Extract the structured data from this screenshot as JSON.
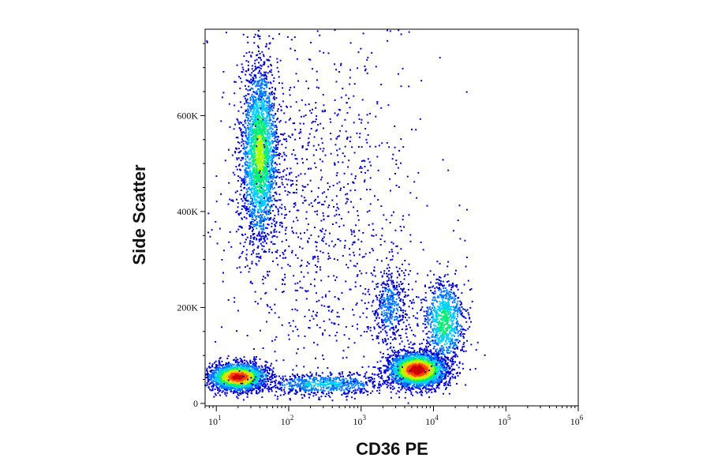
{
  "chart_data": {
    "type": "scatter",
    "title": "",
    "xlabel": "CD36 PE",
    "ylabel": "Side Scatter",
    "x_scale": "log",
    "xlim": [
      7,
      1000000
    ],
    "ylim": [
      -5000,
      780000
    ],
    "x_ticks": [
      {
        "value": 10,
        "base": "10",
        "exp": "1"
      },
      {
        "value": 100,
        "base": "10",
        "exp": "2"
      },
      {
        "value": 1000,
        "base": "10",
        "exp": "3"
      },
      {
        "value": 10000,
        "base": "10",
        "exp": "4"
      },
      {
        "value": 100000,
        "base": "10",
        "exp": "5"
      },
      {
        "value": 1000000,
        "base": "10",
        "exp": "6"
      }
    ],
    "y_ticks": [
      {
        "value": 0,
        "label": "0"
      },
      {
        "value": 200000,
        "label": "200K"
      },
      {
        "value": 400000,
        "label": "400K"
      },
      {
        "value": 600000,
        "label": "600K"
      }
    ],
    "grid": false,
    "legend": "none",
    "density_colormap": [
      "#0000cc",
      "#0077ff",
      "#00ccff",
      "#00ee77",
      "#aaff00",
      "#ffcc00",
      "#ff4400",
      "#cc0000"
    ],
    "populations": [
      {
        "id": "granulocytes",
        "x_center": 40,
        "y_center": 520000,
        "x_spread_log": 0.13,
        "y_spread": 95000,
        "events": 2600,
        "peak_density": 0.55
      },
      {
        "id": "lymphocytes",
        "x_center": 20,
        "y_center": 55000,
        "x_spread_log": 0.2,
        "y_spread": 14000,
        "events": 2200,
        "peak_density": 0.95
      },
      {
        "id": "monocytes",
        "x_center": 6000,
        "y_center": 70000,
        "x_spread_log": 0.2,
        "y_spread": 18000,
        "events": 2800,
        "peak_density": 1.0
      },
      {
        "id": "cd36-high-tail",
        "x_center": 14000,
        "y_center": 170000,
        "x_spread_log": 0.15,
        "y_spread": 45000,
        "events": 900,
        "peak_density": 0.45
      },
      {
        "id": "mid-population",
        "x_center": 2500,
        "y_center": 200000,
        "x_spread_log": 0.13,
        "y_spread": 45000,
        "events": 450,
        "peak_density": 0.2
      },
      {
        "id": "low-bridge",
        "x_center": 300,
        "y_center": 40000,
        "x_spread_log": 0.45,
        "y_spread": 12000,
        "events": 700,
        "peak_density": 0.3
      },
      {
        "id": "background",
        "x_center": 300,
        "y_center": 380000,
        "x_spread_log": 0.7,
        "y_spread": 220000,
        "events": 1100,
        "peak_density": 0.05
      }
    ]
  }
}
